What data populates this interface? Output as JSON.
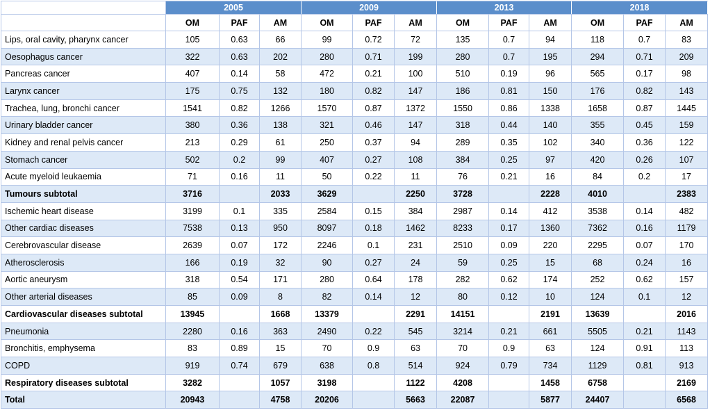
{
  "table": {
    "years": [
      "2005",
      "2009",
      "2013",
      "2018"
    ],
    "columns": [
      "OM",
      "PAF",
      "AM",
      "OM",
      "PAF",
      "AM",
      "OM",
      "PAF",
      "AM",
      "OM",
      "PAF",
      "AM"
    ],
    "rows": [
      {
        "label": "Lips, oral cavity, pharynx cancer",
        "cells": [
          105,
          0.63,
          66,
          99,
          0.72,
          72,
          135,
          0.7,
          94,
          118,
          0.7,
          83
        ]
      },
      {
        "label": "Oesophagus cancer",
        "cells": [
          322,
          0.63,
          202,
          280,
          0.71,
          199,
          280,
          0.7,
          195,
          294,
          0.71,
          209
        ]
      },
      {
        "label": "Pancreas cancer",
        "cells": [
          407,
          0.14,
          58,
          472,
          0.21,
          100,
          510,
          0.19,
          96,
          565,
          0.17,
          98
        ]
      },
      {
        "label": "Larynx cancer",
        "cells": [
          175,
          0.75,
          132,
          180,
          0.82,
          147,
          186,
          0.81,
          150,
          176,
          0.82,
          143
        ]
      },
      {
        "label": "Trachea, lung, bronchi cancer",
        "cells": [
          1541,
          0.82,
          1266,
          1570,
          0.87,
          1372,
          1550,
          0.86,
          1338,
          1658,
          0.87,
          1445
        ]
      },
      {
        "label": "Urinary bladder cancer",
        "cells": [
          380,
          0.36,
          138,
          321,
          0.46,
          147,
          318,
          0.44,
          140,
          355,
          0.45,
          159
        ]
      },
      {
        "label": "Kidney and renal pelvis cancer",
        "cells": [
          213,
          0.29,
          61,
          250,
          0.37,
          94,
          289,
          0.35,
          102,
          340,
          0.36,
          122
        ]
      },
      {
        "label": "Stomach cancer",
        "cells": [
          502,
          0.2,
          99,
          407,
          0.27,
          108,
          384,
          0.25,
          97,
          420,
          0.26,
          107
        ]
      },
      {
        "label": "Acute myeloid leukaemia",
        "cells": [
          71,
          0.16,
          11,
          50,
          0.22,
          11,
          76,
          0.21,
          16,
          84,
          0.2,
          17
        ]
      },
      {
        "label": "Tumours subtotal",
        "emphasis": true,
        "cells": [
          3716,
          null,
          2033,
          3629,
          null,
          2250,
          3728,
          null,
          2228,
          4010,
          null,
          2383
        ]
      },
      {
        "label": "Ischemic heart disease",
        "cells": [
          3199,
          0.1,
          335,
          2584,
          0.15,
          384,
          2987,
          0.14,
          412,
          3538,
          0.14,
          482
        ]
      },
      {
        "label": "Other cardiac diseases",
        "cells": [
          7538,
          0.13,
          950,
          8097,
          0.18,
          1462,
          8233,
          0.17,
          1360,
          7362,
          0.16,
          1179
        ]
      },
      {
        "label": "Cerebrovascular disease",
        "cells": [
          2639,
          0.07,
          172,
          2246,
          0.1,
          231,
          2510,
          0.09,
          220,
          2295,
          0.07,
          170
        ]
      },
      {
        "label": "Atherosclerosis",
        "cells": [
          166,
          0.19,
          32,
          90,
          0.27,
          24,
          59,
          0.25,
          15,
          68,
          0.24,
          16
        ]
      },
      {
        "label": "Aortic aneurysm",
        "cells": [
          318,
          0.54,
          171,
          280,
          0.64,
          178,
          282,
          0.62,
          174,
          252,
          0.62,
          157
        ]
      },
      {
        "label": "Other arterial diseases",
        "cells": [
          85,
          0.09,
          8,
          82,
          0.14,
          12,
          80,
          0.12,
          10,
          124,
          0.1,
          12
        ]
      },
      {
        "label": "Cardiovascular diseases subtotal",
        "emphasis": true,
        "cells": [
          13945,
          null,
          1668,
          13379,
          null,
          2291,
          14151,
          null,
          2191,
          13639,
          null,
          2016
        ]
      },
      {
        "label": "Pneumonia",
        "cells": [
          2280,
          0.16,
          363,
          2490,
          0.22,
          545,
          3214,
          0.21,
          661,
          5505,
          0.21,
          1143
        ]
      },
      {
        "label": "Bronchitis, emphysema",
        "cells": [
          83,
          0.89,
          15,
          70,
          0.9,
          63,
          70,
          0.9,
          63,
          124,
          0.91,
          113
        ]
      },
      {
        "label": "COPD",
        "cells": [
          919,
          0.74,
          679,
          638,
          0.8,
          514,
          924,
          0.79,
          734,
          1129,
          0.81,
          913
        ]
      },
      {
        "label": "Respiratory diseases subtotal",
        "emphasis": true,
        "cells": [
          3282,
          null,
          1057,
          3198,
          null,
          1122,
          4208,
          null,
          1458,
          6758,
          null,
          2169
        ]
      },
      {
        "label": "Total",
        "emphasis": true,
        "cells": [
          20943,
          null,
          4758,
          20206,
          null,
          5663,
          22087,
          null,
          5877,
          24407,
          null,
          6568
        ]
      }
    ]
  }
}
